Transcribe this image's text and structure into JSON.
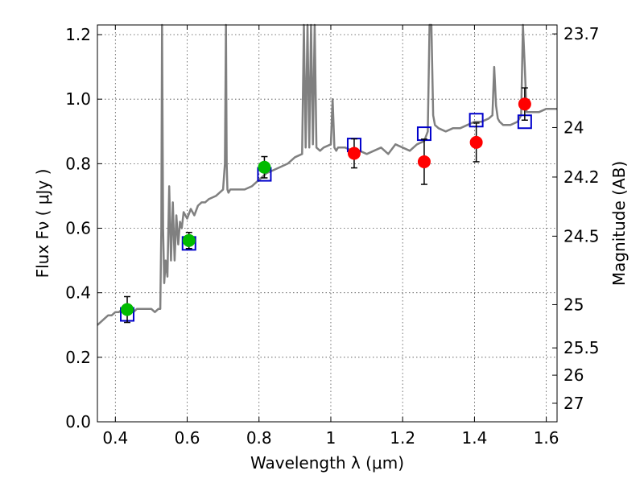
{
  "chart_data": {
    "type": "scatter",
    "title": "",
    "xlabel": "Wavelength  λ (μm)",
    "ylabel": "Flux  Fν  ( μJy )",
    "y2label": "Magnitude (AB)",
    "xlim": [
      0.35,
      1.63
    ],
    "ylim": [
      0.0,
      1.23
    ],
    "xticks": [
      0.4,
      0.6,
      0.8,
      1.0,
      1.2,
      1.4,
      1.6
    ],
    "xtick_labels": [
      "0.4",
      "0.6",
      "0.8",
      "1",
      "1.2",
      "1.4",
      "1.6"
    ],
    "yticks": [
      0.0,
      0.2,
      0.4,
      0.6,
      0.8,
      1.0,
      1.2
    ],
    "ytick_labels": [
      "0.0",
      "0.2",
      "0.4",
      "0.6",
      "0.8",
      "1.0",
      "1.2"
    ],
    "y2ticks": [
      {
        "label": "23.7",
        "flux": 1.2023
      },
      {
        "label": "24",
        "flux": 0.912
      },
      {
        "label": "24.2",
        "flux": 0.7586
      },
      {
        "label": "24.5",
        "flux": 0.5754
      },
      {
        "label": "25",
        "flux": 0.3631
      },
      {
        "label": "25.5",
        "flux": 0.2291
      },
      {
        "label": "26",
        "flux": 0.1445
      },
      {
        "label": "27",
        "flux": 0.0575
      }
    ],
    "grid": true,
    "colors": {
      "spectrum": "#808080",
      "green_points": "#00bb00",
      "red_points": "#ff0000",
      "model_squares": "#0000cc",
      "errorbar": "#000000"
    },
    "series": [
      {
        "kind": "spectrum-line",
        "x": [
          0.35,
          0.36,
          0.37,
          0.38,
          0.39,
          0.4,
          0.41,
          0.42,
          0.43,
          0.44,
          0.45,
          0.46,
          0.47,
          0.48,
          0.49,
          0.5,
          0.51,
          0.52,
          0.525,
          0.528,
          0.53,
          0.533,
          0.536,
          0.54,
          0.545,
          0.55,
          0.555,
          0.56,
          0.565,
          0.57,
          0.575,
          0.58,
          0.585,
          0.59,
          0.6,
          0.61,
          0.62,
          0.63,
          0.64,
          0.65,
          0.66,
          0.68,
          0.7,
          0.705,
          0.708,
          0.71,
          0.712,
          0.715,
          0.72,
          0.74,
          0.76,
          0.78,
          0.8,
          0.82,
          0.84,
          0.86,
          0.88,
          0.9,
          0.92,
          0.925,
          0.93,
          0.935,
          0.94,
          0.945,
          0.95,
          0.955,
          0.96,
          0.97,
          0.98,
          1.0,
          1.005,
          1.01,
          1.015,
          1.02,
          1.04,
          1.06,
          1.08,
          1.1,
          1.12,
          1.14,
          1.16,
          1.18,
          1.2,
          1.22,
          1.24,
          1.26,
          1.27,
          1.275,
          1.28,
          1.285,
          1.29,
          1.3,
          1.32,
          1.34,
          1.36,
          1.38,
          1.4,
          1.42,
          1.44,
          1.45,
          1.455,
          1.46,
          1.465,
          1.47,
          1.48,
          1.5,
          1.52,
          1.53,
          1.535,
          1.54,
          1.545,
          1.55,
          1.56,
          1.58,
          1.6,
          1.63
        ],
        "y": [
          0.3,
          0.31,
          0.32,
          0.33,
          0.33,
          0.34,
          0.34,
          0.35,
          0.35,
          0.35,
          0.34,
          0.35,
          0.35,
          0.35,
          0.35,
          0.35,
          0.34,
          0.35,
          0.35,
          0.6,
          1.23,
          0.6,
          0.43,
          0.5,
          0.45,
          0.73,
          0.5,
          0.68,
          0.5,
          0.64,
          0.55,
          0.62,
          0.6,
          0.65,
          0.63,
          0.66,
          0.64,
          0.67,
          0.68,
          0.68,
          0.69,
          0.7,
          0.72,
          0.8,
          1.23,
          0.8,
          0.72,
          0.71,
          0.72,
          0.72,
          0.72,
          0.73,
          0.75,
          0.77,
          0.78,
          0.79,
          0.8,
          0.82,
          0.83,
          1.23,
          0.85,
          1.23,
          0.85,
          1.23,
          0.86,
          1.23,
          0.85,
          0.84,
          0.85,
          0.86,
          1.0,
          0.85,
          0.84,
          0.85,
          0.85,
          0.84,
          0.84,
          0.83,
          0.84,
          0.85,
          0.83,
          0.86,
          0.85,
          0.84,
          0.86,
          0.87,
          0.9,
          1.23,
          1.23,
          0.95,
          0.92,
          0.91,
          0.9,
          0.91,
          0.91,
          0.92,
          0.93,
          0.93,
          0.94,
          0.95,
          1.1,
          0.98,
          0.94,
          0.93,
          0.92,
          0.92,
          0.93,
          0.95,
          1.23,
          1.1,
          0.96,
          0.96,
          0.96,
          0.96,
          0.97,
          0.97
        ]
      },
      {
        "kind": "observed-green",
        "x": [
          0.433,
          0.605,
          0.815
        ],
        "y": [
          0.348,
          0.562,
          0.789
        ],
        "err": [
          0.04,
          0.025,
          0.033
        ]
      },
      {
        "kind": "observed-red",
        "x": [
          1.065,
          1.26,
          1.405,
          1.54
        ],
        "y": [
          0.832,
          0.806,
          0.866,
          0.985
        ],
        "err": [
          0.045,
          0.07,
          0.06,
          0.05
        ]
      },
      {
        "kind": "model-squares",
        "x": [
          0.433,
          0.605,
          0.815,
          1.065,
          1.26,
          1.405,
          1.54
        ],
        "y": [
          0.333,
          0.553,
          0.767,
          0.858,
          0.893,
          0.935,
          0.93
        ]
      }
    ]
  }
}
